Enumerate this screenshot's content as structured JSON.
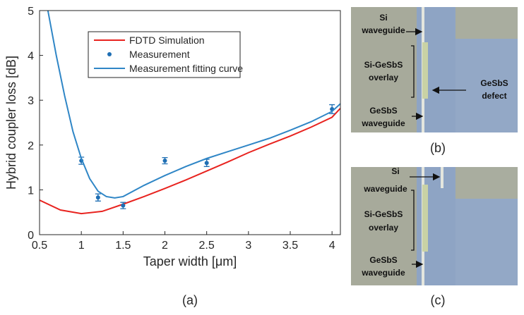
{
  "chart_data": {
    "type": "line",
    "xlabel": "Taper width [μm]",
    "ylabel": "Hybrid coupler loss [dB]",
    "caption": "(a)",
    "xlim": [
      0.5,
      4.1
    ],
    "ylim": [
      0,
      5
    ],
    "xticks": [
      0.5,
      1,
      1.5,
      2,
      2.5,
      3,
      3.5,
      4
    ],
    "yticks": [
      0,
      1,
      2,
      3,
      4,
      5
    ],
    "grid": false,
    "legend": "upper center",
    "series": [
      {
        "name": "FDTD Simulation",
        "color": "#e8231f",
        "kind": "line",
        "x": [
          0.5,
          0.75,
          1,
          1.25,
          1.5,
          1.75,
          2,
          2.25,
          2.5,
          2.75,
          3,
          3.25,
          3.5,
          3.75,
          4,
          4.1
        ],
        "values": [
          0.77,
          0.55,
          0.47,
          0.52,
          0.68,
          0.85,
          1.03,
          1.22,
          1.42,
          1.62,
          1.83,
          2.02,
          2.2,
          2.4,
          2.62,
          2.82
        ]
      },
      {
        "name": "Measurement",
        "color": "#1f6fb4",
        "kind": "errorbar",
        "x": [
          1,
          1.2,
          1.5,
          2,
          2.5,
          4
        ],
        "values": [
          1.65,
          0.83,
          0.65,
          1.65,
          1.6,
          2.8
        ],
        "errors": [
          0.08,
          0.08,
          0.07,
          0.07,
          0.08,
          0.1
        ]
      },
      {
        "name": "Measurement fitting curve",
        "color": "#2f86c6",
        "kind": "line",
        "x": [
          0.6,
          0.7,
          0.8,
          0.9,
          1,
          1.1,
          1.2,
          1.3,
          1.4,
          1.5,
          1.75,
          2,
          2.25,
          2.5,
          2.75,
          3,
          3.25,
          3.5,
          3.75,
          4,
          4.1
        ],
        "values": [
          5,
          4,
          3.1,
          2.3,
          1.7,
          1.25,
          0.97,
          0.85,
          0.82,
          0.85,
          1.1,
          1.32,
          1.52,
          1.7,
          1.85,
          2,
          2.15,
          2.33,
          2.52,
          2.75,
          2.92
        ]
      }
    ]
  },
  "panels": [
    {
      "caption": "(b)",
      "labels": [
        [
          "Si",
          "waveguide"
        ],
        [
          "Si-GeSbS",
          "overlay"
        ],
        [
          "GeSbS",
          "defect"
        ],
        [
          "GeSbS",
          "waveguide"
        ]
      ]
    },
    {
      "caption": "(c)",
      "labels": [
        [
          "Si",
          "waveguide"
        ],
        [
          "Si-GeSbS",
          "overlay"
        ],
        [
          "GeSbS",
          "waveguide"
        ]
      ]
    }
  ]
}
